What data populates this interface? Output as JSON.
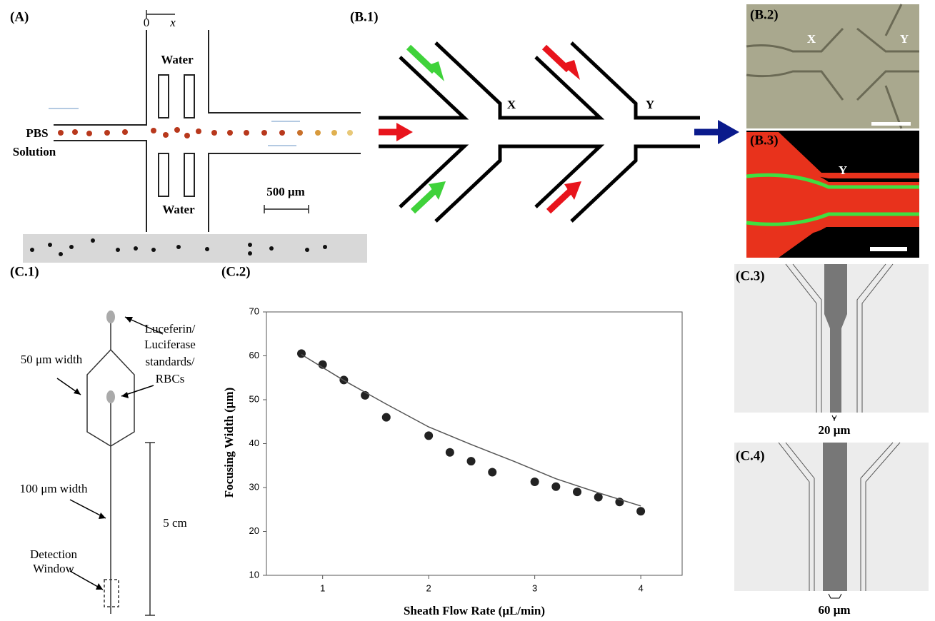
{
  "panels": {
    "A": {
      "label": "(A)",
      "origin": "0",
      "axis": "x",
      "water_top": "Water",
      "water_bottom": "Water",
      "inlet": [
        "PBS",
        "Solution"
      ],
      "scale": "500 μm"
    },
    "B1": {
      "label": "(B.1)",
      "junction_1": "X",
      "junction_2": "Y"
    },
    "B2": {
      "label": "(B.2)",
      "junction_1": "X",
      "junction_2": "Y"
    },
    "B3": {
      "label": "(B.3)",
      "junction": "Y"
    },
    "C1": {
      "label": "(C.1)",
      "reservoir": [
        "Luceferin/",
        "Luciferase",
        "standards/",
        "RBCs"
      ],
      "width_1": "50 μm width",
      "width_2": "100 μm width",
      "length": "5 cm",
      "detection": [
        "Detection",
        "Window"
      ]
    },
    "C2": {
      "label": "(C.2)"
    },
    "C3": {
      "label": "(C.3)",
      "width": "20 μm"
    },
    "C4": {
      "label": "(C.4)",
      "width": "60 μm"
    }
  },
  "chart_data": {
    "type": "scatter",
    "xlabel": "Sheath Flow Rate (μL/min)",
    "ylabel": "Focusing Width (μm)",
    "xlim": [
      0.47,
      4.39
    ],
    "ylim": [
      10,
      70
    ],
    "xticks": [
      1,
      2,
      3,
      4
    ],
    "yticks": [
      10,
      20,
      30,
      40,
      50,
      60,
      70
    ],
    "series": [
      {
        "style": "marker",
        "color": "#222222",
        "x": [
          0.8,
          1,
          1.2,
          1.4,
          1.6,
          2,
          2.2,
          2.4,
          2.6,
          3,
          3.2,
          3.4,
          3.6,
          3.8,
          4
        ],
        "values": [
          60.5,
          58,
          54.5,
          51,
          46,
          41.8,
          38,
          36,
          33.5,
          31.3,
          30.2,
          29,
          27.8,
          26.7,
          24.6
        ]
      },
      {
        "style": "line",
        "color": "#555555",
        "x": [
          0.8,
          1.2,
          1.6,
          2,
          2.4,
          2.8,
          3.2,
          3.6,
          4
        ],
        "values": [
          60.3,
          54.4,
          49,
          43.8,
          39.8,
          36,
          32,
          28.8,
          25.8
        ]
      }
    ]
  }
}
